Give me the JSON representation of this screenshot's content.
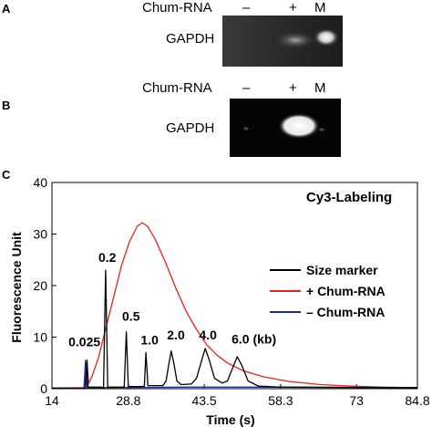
{
  "panel_a": {
    "letter": "A",
    "sample_label": "Chum-RNA",
    "lanes": [
      "–",
      "+",
      "M"
    ],
    "gene_label": "GAPDH"
  },
  "panel_b": {
    "letter": "B",
    "sample_label": "Chum-RNA",
    "lanes": [
      "–",
      "+",
      "M"
    ],
    "gene_label": "GAPDH"
  },
  "panel_c": {
    "letter": "C",
    "chart_data": {
      "type": "line",
      "title": "Cy3-Labeling",
      "xlabel": "Time (s)",
      "ylabel": "Fluorescence Unit",
      "xticks": [
        "14",
        "28.8",
        "43.5",
        "58.3",
        "73",
        "84.8"
      ],
      "xtick_values": [
        14,
        28.8,
        43.5,
        58.3,
        73,
        84.8
      ],
      "xlim": [
        14,
        84.8
      ],
      "yticks": [
        0,
        10,
        20,
        30,
        40
      ],
      "ylim": [
        0,
        40
      ],
      "legend_position": "right",
      "series": [
        {
          "name": "Size marker",
          "color": "#000000",
          "points": [
            [
              14,
              0.1
            ],
            [
              20.5,
              0.1
            ],
            [
              20.8,
              5.5
            ],
            [
              21.0,
              0.3
            ],
            [
              23.5,
              0.3
            ],
            [
              24.0,
              0.2
            ],
            [
              24.4,
              23
            ],
            [
              24.8,
              0.3
            ],
            [
              27.5,
              0.3
            ],
            [
              28.0,
              0.3
            ],
            [
              28.4,
              11
            ],
            [
              28.8,
              0.4
            ],
            [
              31.5,
              0.4
            ],
            [
              31.9,
              0.5
            ],
            [
              32.2,
              7
            ],
            [
              32.6,
              0.6
            ],
            [
              35.5,
              0.6
            ],
            [
              36.1,
              1.5
            ],
            [
              36.6,
              4.5
            ],
            [
              37.1,
              7.3
            ],
            [
              37.6,
              5
            ],
            [
              38.2,
              1.5
            ],
            [
              39,
              0.8
            ],
            [
              41,
              0.9
            ],
            [
              42,
              2
            ],
            [
              43,
              5.5
            ],
            [
              43.7,
              7.8
            ],
            [
              44.5,
              5.5
            ],
            [
              45.5,
              2
            ],
            [
              47,
              1.1
            ],
            [
              48,
              1.5
            ],
            [
              49,
              4
            ],
            [
              49.9,
              6.2
            ],
            [
              50.8,
              4.5
            ],
            [
              52,
              1.5
            ],
            [
              54,
              0.5
            ],
            [
              58,
              0.3
            ],
            [
              84.8,
              0.2
            ]
          ]
        },
        {
          "name": "+ Chum-RNA",
          "color": "#e8211c",
          "points": [
            [
              14,
              0.1
            ],
            [
              20.3,
              0.2
            ],
            [
              20.8,
              5.2
            ],
            [
              21.1,
              1
            ],
            [
              21.8,
              2.5
            ],
            [
              23,
              6
            ],
            [
              24.5,
              12
            ],
            [
              26,
              18
            ],
            [
              27.5,
              24
            ],
            [
              29,
              28.5
            ],
            [
              30.5,
              31.5
            ],
            [
              31.5,
              32.2
            ],
            [
              32.5,
              31.5
            ],
            [
              34,
              29
            ],
            [
              36,
              24.5
            ],
            [
              38,
              19.5
            ],
            [
              40,
              15
            ],
            [
              42,
              11.5
            ],
            [
              44,
              8.5
            ],
            [
              46,
              6.5
            ],
            [
              48,
              5
            ],
            [
              51,
              3.5
            ],
            [
              55,
              2.3
            ],
            [
              60,
              1.4
            ],
            [
              66,
              0.8
            ],
            [
              72,
              0.5
            ],
            [
              78,
              0.3
            ],
            [
              84.8,
              0.2
            ]
          ]
        },
        {
          "name": "– Chum-RNA",
          "color": "#1f2a9c",
          "points": [
            [
              14,
              0.1
            ],
            [
              20.2,
              0.1
            ],
            [
              20.5,
              5.5
            ],
            [
              20.8,
              0.2
            ],
            [
              22,
              0.2
            ],
            [
              40,
              0.3
            ],
            [
              60,
              0.3
            ],
            [
              84.8,
              0.2
            ]
          ]
        }
      ],
      "annotations": [
        "0.025",
        "0.2",
        "0.5",
        "1.0",
        "2.0",
        "4.0",
        "6.0 (kb)"
      ]
    }
  }
}
